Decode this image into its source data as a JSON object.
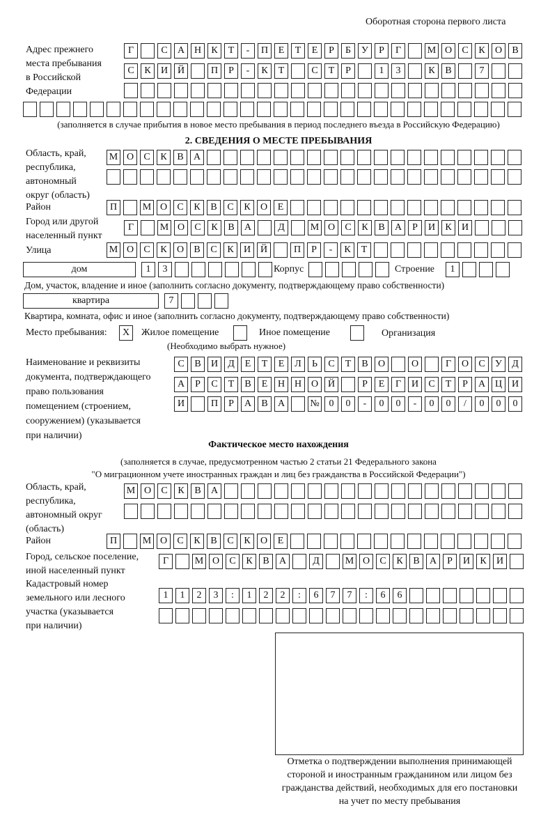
{
  "header": {
    "page_side": "Оборотная сторона первого листа"
  },
  "prev_address": {
    "label": [
      "Адрес прежнего",
      "места пребывания",
      "в Российской",
      "Федерации"
    ],
    "rows": [
      [
        "Г",
        "",
        "С",
        "А",
        "Н",
        "К",
        "Т",
        "-",
        "П",
        "Е",
        "Т",
        "Е",
        "Р",
        "Б",
        "У",
        "Р",
        "Г",
        "",
        "М",
        "О",
        "С",
        "К",
        "О",
        "В"
      ],
      [
        "С",
        "К",
        "И",
        "Й",
        "",
        "П",
        "Р",
        "-",
        "К",
        "Т",
        "",
        "С",
        "Т",
        "Р",
        "",
        "1",
        "3",
        "",
        "К",
        "В",
        "",
        "7",
        "",
        ""
      ],
      [
        "",
        "",
        "",
        "",
        "",
        "",
        "",
        "",
        "",
        "",
        "",
        "",
        "",
        "",
        "",
        "",
        "",
        "",
        "",
        "",
        "",
        "",
        "",
        ""
      ],
      [
        "",
        "",
        "",
        "",
        "",
        "",
        "",
        "",
        "",
        "",
        "",
        "",
        "",
        "",
        "",
        "",
        "",
        "",
        "",
        "",
        "",
        "",
        "",
        "",
        "",
        "",
        "",
        "",
        "",
        ""
      ]
    ],
    "note": "(заполняется в случае прибытия в новое место пребывания в период последнего въезда в Российскую Федерацию)"
  },
  "section2": {
    "title": "2. СВЕДЕНИЯ О МЕСТЕ ПРЕБЫВАНИЯ",
    "region_label": [
      "Область, край,",
      "республика,",
      "автономный",
      "округ (область)"
    ],
    "region_rows": [
      [
        "М",
        "О",
        "С",
        "К",
        "В",
        "А",
        "",
        "",
        "",
        "",
        "",
        "",
        "",
        "",
        "",
        "",
        "",
        "",
        "",
        "",
        "",
        "",
        "",
        "",
        ""
      ],
      [
        "",
        "",
        "",
        "",
        "",
        "",
        "",
        "",
        "",
        "",
        "",
        "",
        "",
        "",
        "",
        "",
        "",
        "",
        "",
        "",
        "",
        "",
        "",
        "",
        ""
      ]
    ],
    "district_label": "Район",
    "district_row": [
      "П",
      "",
      "М",
      "О",
      "С",
      "К",
      "В",
      "С",
      "К",
      "О",
      "Е",
      "",
      "",
      "",
      "",
      "",
      "",
      "",
      "",
      "",
      "",
      "",
      "",
      "",
      ""
    ],
    "city_label": [
      "Город или другой",
      "населенный пункт"
    ],
    "city_row": [
      "Г",
      "",
      "М",
      "О",
      "С",
      "К",
      "В",
      "А",
      "",
      "Д",
      "",
      "М",
      "О",
      "С",
      "К",
      "В",
      "А",
      "Р",
      "И",
      "К",
      "И",
      "",
      "",
      ""
    ],
    "street_label": "Улица",
    "street_row": [
      "М",
      "О",
      "С",
      "К",
      "О",
      "В",
      "С",
      "К",
      "И",
      "Й",
      "",
      "П",
      "Р",
      "-",
      "К",
      "Т",
      "",
      "",
      "",
      "",
      "",
      "",
      "",
      "",
      ""
    ],
    "house_type": "дом",
    "house_row": [
      "1",
      "3",
      "",
      "",
      "",
      "",
      "",
      ""
    ],
    "korpus_label": "Корпус",
    "korpus_row": [
      "",
      "",
      "",
      "",
      ""
    ],
    "building_label": "Строение",
    "building_row": [
      "1",
      "",
      "",
      ""
    ],
    "house_note": "Дом, участок, владение и иное (заполнить согласно документу, подтверждающему право собственности)",
    "apt_type": "квартира",
    "apt_row": [
      "7",
      "",
      "",
      ""
    ],
    "apt_note": "Квартира, комната, офис и иное (заполнить согласно документу, подтверждающему право собственности)",
    "stay_place_label": "Место пребывания:",
    "options": [
      {
        "label": "Жилое помещение",
        "mark": "Х",
        "checked": true
      },
      {
        "label": "Иное помещение",
        "mark": "",
        "checked": false
      },
      {
        "label": "Организация",
        "mark": "",
        "checked": false
      }
    ],
    "options_note": "(Необходимо выбрать нужное)",
    "doc_label": [
      "Наименование и реквизиты",
      "документа, подтверждающего",
      "право пользования",
      "помещением (строением,",
      "сооружением) (указывается",
      "при наличии)"
    ],
    "doc_rows": [
      [
        "С",
        "В",
        "И",
        "Д",
        "Е",
        "Т",
        "Е",
        "Л",
        "Ь",
        "С",
        "Т",
        "В",
        "О",
        "",
        "О",
        "",
        "Г",
        "О",
        "С",
        "У",
        "Д"
      ],
      [
        "А",
        "Р",
        "С",
        "Т",
        "В",
        "Е",
        "Н",
        "Н",
        "О",
        "Й",
        "",
        "Р",
        "Е",
        "Г",
        "И",
        "С",
        "Т",
        "Р",
        "А",
        "Ц",
        "И"
      ],
      [
        "И",
        "",
        "П",
        "Р",
        "А",
        "В",
        "А",
        "",
        "№",
        "0",
        "0",
        "-",
        "0",
        "0",
        "-",
        "0",
        "0",
        "/",
        "0",
        "0",
        "0"
      ]
    ]
  },
  "actual": {
    "title": "Фактическое место нахождения",
    "note": [
      "(заполняется в случае, предусмотренном частью 2 статьи 21 Федерального закона",
      "\"О миграционном учете иностранных граждан и лиц без гражданства в Российской Федерации\")"
    ],
    "region_label": [
      "Область, край,",
      "республика,",
      "автономный округ",
      "(область)"
    ],
    "region_rows": [
      [
        "М",
        "О",
        "С",
        "К",
        "В",
        "А",
        "",
        "",
        "",
        "",
        "",
        "",
        "",
        "",
        "",
        "",
        "",
        "",
        "",
        "",
        "",
        "",
        "",
        ""
      ],
      [
        "",
        "",
        "",
        "",
        "",
        "",
        "",
        "",
        "",
        "",
        "",
        "",
        "",
        "",
        "",
        "",
        "",
        "",
        "",
        "",
        "",
        "",
        "",
        ""
      ]
    ],
    "district_label": "Район",
    "district_row": [
      "П",
      "",
      "М",
      "О",
      "С",
      "К",
      "В",
      "С",
      "К",
      "О",
      "Е",
      "",
      "",
      "",
      "",
      "",
      "",
      "",
      "",
      "",
      "",
      "",
      "",
      "",
      ""
    ],
    "city_label": [
      "Город, сельское поселение,",
      "иной населенный пункт"
    ],
    "city_row": [
      "Г",
      "",
      "М",
      "О",
      "С",
      "К",
      "В",
      "А",
      "",
      "Д",
      "",
      "М",
      "О",
      "С",
      "К",
      "В",
      "А",
      "Р",
      "И",
      "К",
      "И",
      ""
    ],
    "cadastral_label": [
      "Кадастровый номер",
      "земельного или лесного",
      "участка (указывается",
      "при наличии)"
    ],
    "cadastral_rows": [
      [
        "1",
        "1",
        "2",
        "3",
        ":",
        "1",
        "2",
        "2",
        ":",
        "6",
        "7",
        "7",
        ":",
        "6",
        "6",
        "",
        "",
        "",
        "",
        "",
        "",
        ""
      ],
      [
        "",
        "",
        "",
        "",
        "",
        "",
        "",
        "",
        "",
        "",
        "",
        "",
        "",
        "",
        "",
        "",
        "",
        "",
        "",
        "",
        "",
        ""
      ]
    ]
  },
  "confirmation": {
    "caption": [
      "Отметка о подтверждении выполнения принимающей",
      "стороной и иностранным гражданином или лицом без",
      "гражданства действий, необходимых для его постановки",
      "на учет по месту пребывания"
    ]
  }
}
